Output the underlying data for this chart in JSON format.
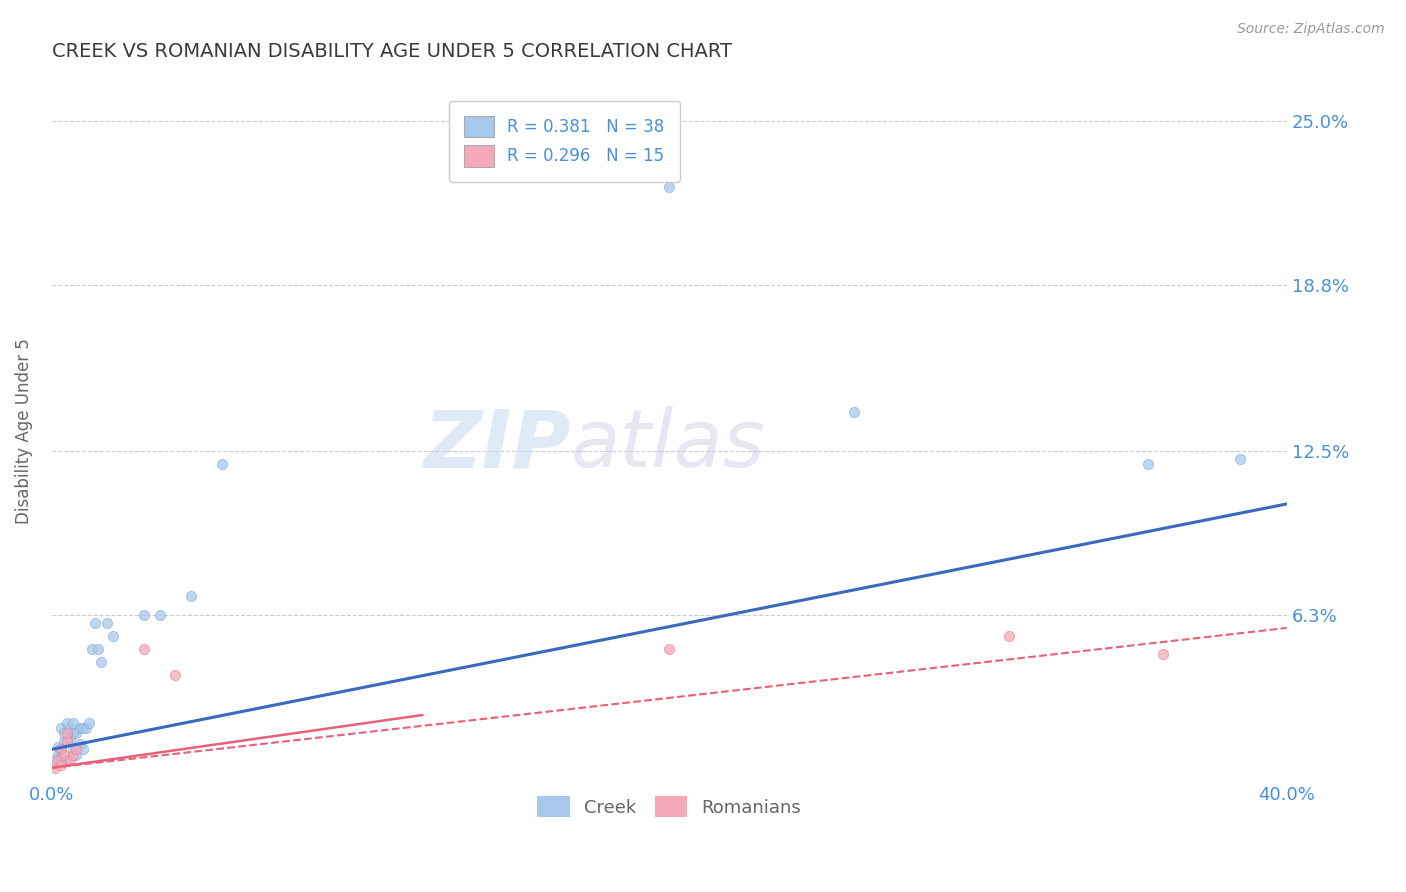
{
  "title": "CREEK VS ROMANIAN DISABILITY AGE UNDER 5 CORRELATION CHART",
  "source": "Source: ZipAtlas.com",
  "ylabel": "Disability Age Under 5",
  "xlabel": "",
  "xlim": [
    0.0,
    0.4
  ],
  "ylim": [
    0.0,
    0.265
  ],
  "yticks": [
    0.0,
    0.063,
    0.125,
    0.188,
    0.25
  ],
  "ytick_labels": [
    "",
    "6.3%",
    "12.5%",
    "18.8%",
    "25.0%"
  ],
  "xticks": [
    0.0,
    0.4
  ],
  "xtick_labels": [
    "0.0%",
    "40.0%"
  ],
  "title_color": "#3a3a3a",
  "title_fontsize": 14,
  "source_color": "#999999",
  "source_fontsize": 10,
  "axis_label_color": "#666666",
  "tick_label_color": "#4a90d9",
  "watermark_zip": "ZIP",
  "watermark_atlas": "atlas",
  "creek_color": "#a8c8ee",
  "romanian_color": "#f4a8b8",
  "creek_edge_color": "#7aaad8",
  "romanian_edge_color": "#e87a90",
  "creek_line_color": "#3a6abf",
  "romanian_line_color": "#e8607a",
  "romanian_solid_color": "#e8607a",
  "legend_r_creek": "0.381",
  "legend_n_creek": "38",
  "legend_r_romanian": "0.296",
  "legend_n_romanian": "15",
  "creek_scatter_x": [
    0.001,
    0.002,
    0.002,
    0.003,
    0.003,
    0.003,
    0.004,
    0.004,
    0.005,
    0.005,
    0.005,
    0.006,
    0.006,
    0.007,
    0.007,
    0.007,
    0.008,
    0.008,
    0.009,
    0.009,
    0.01,
    0.01,
    0.011,
    0.012,
    0.013,
    0.014,
    0.015,
    0.016,
    0.018,
    0.02,
    0.03,
    0.035,
    0.045,
    0.055,
    0.2,
    0.26,
    0.355,
    0.385
  ],
  "creek_scatter_y": [
    0.008,
    0.01,
    0.013,
    0.009,
    0.012,
    0.02,
    0.015,
    0.018,
    0.008,
    0.015,
    0.022,
    0.016,
    0.02,
    0.012,
    0.018,
    0.022,
    0.01,
    0.018,
    0.014,
    0.02,
    0.012,
    0.02,
    0.02,
    0.022,
    0.05,
    0.06,
    0.05,
    0.045,
    0.06,
    0.055,
    0.063,
    0.063,
    0.07,
    0.12,
    0.225,
    0.14,
    0.12,
    0.122
  ],
  "romanian_scatter_x": [
    0.001,
    0.002,
    0.003,
    0.003,
    0.004,
    0.005,
    0.005,
    0.006,
    0.007,
    0.008,
    0.03,
    0.04,
    0.2,
    0.31,
    0.36
  ],
  "romanian_scatter_y": [
    0.005,
    0.008,
    0.006,
    0.012,
    0.01,
    0.015,
    0.018,
    0.008,
    0.01,
    0.012,
    0.05,
    0.04,
    0.05,
    0.055,
    0.048
  ],
  "creek_trend_x": [
    0.0,
    0.4
  ],
  "creek_trend_y": [
    0.012,
    0.105
  ],
  "romanian_trend_x": [
    0.0,
    0.4
  ],
  "romanian_trend_y": [
    0.005,
    0.058
  ],
  "romanian_solid_trend_x": [
    0.0,
    0.12
  ],
  "romanian_solid_trend_y": [
    0.005,
    0.025
  ],
  "background_color": "#ffffff",
  "grid_color": "#cccccc",
  "legend_fontsize": 12,
  "scatter_size": 55
}
